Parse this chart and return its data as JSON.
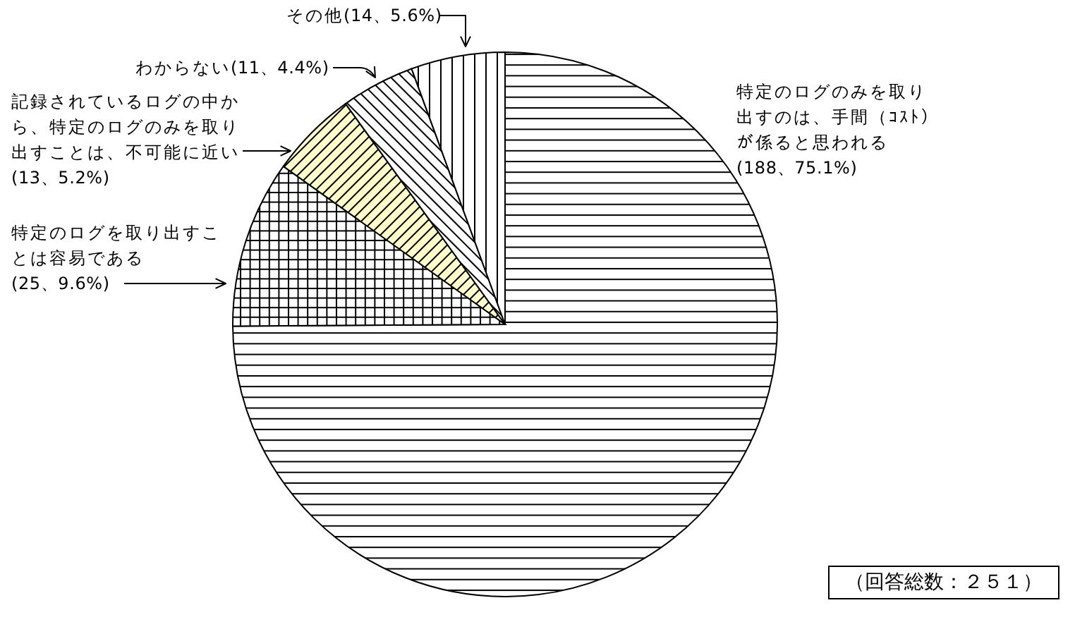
{
  "chart_data": {
    "type": "pie",
    "categories": [
      "特定のログのみを取り出すのは、手間（ｺｽﾄ）が係ると思われる",
      "特定のログを取り出すことは容易である",
      "記録されているログの中から、特定のログのみを取り出すことは、不可能に近い",
      "わからない",
      "その他"
    ],
    "values": [
      188,
      25,
      13,
      11,
      14
    ],
    "value_labels": [
      "(188、75.1%)",
      "(25、9.6%)",
      "(13、5.2%)",
      "(11、4.4%)",
      "(14、5.6%)"
    ],
    "colors": [
      "#ffffff",
      "#ffffff",
      "#ffffcc",
      "#ffffff",
      "#ffffff"
    ],
    "annotations": [
      "（回答総数：２５１）"
    ]
  }
}
